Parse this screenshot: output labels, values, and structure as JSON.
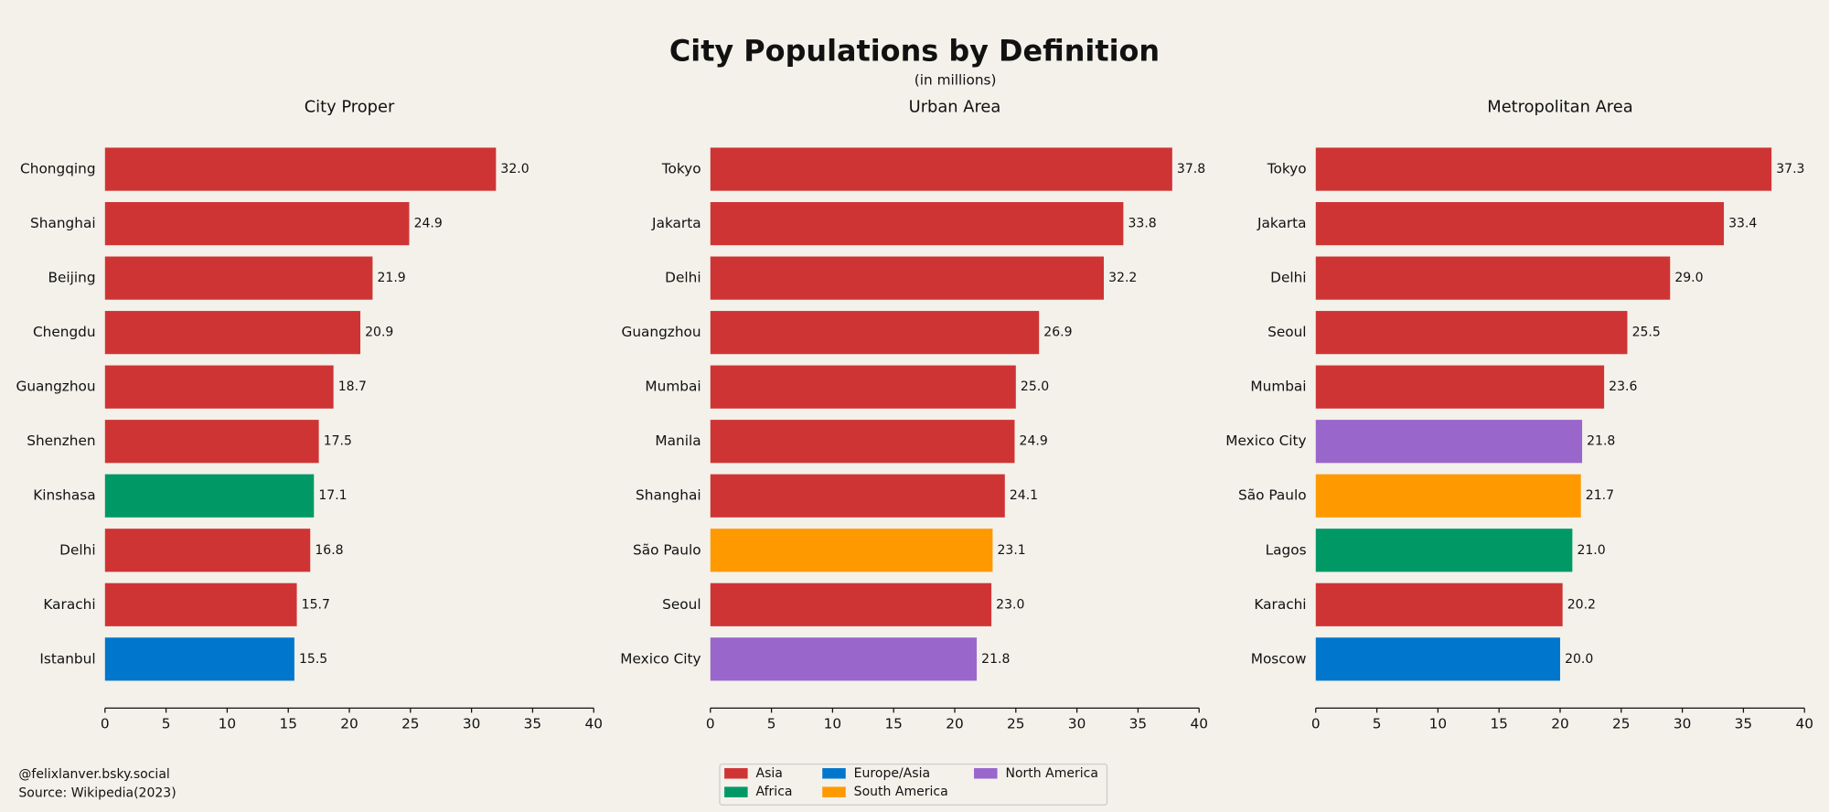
{
  "title": "City Populations by Definition",
  "subtitle": "(in millions)",
  "credits": [
    "@felixlanver.bsky.social",
    "Source: Wikipedia(2023)"
  ],
  "legend": [
    {
      "name": "Asia",
      "color": "#cf3434"
    },
    {
      "name": "Africa",
      "color": "#009966"
    },
    {
      "name": "Europe/Asia",
      "color": "#0077cc"
    },
    {
      "name": "South America",
      "color": "#ff9900"
    },
    {
      "name": "North America",
      "color": "#9966cc"
    }
  ],
  "chart_data": [
    {
      "type": "barh",
      "title": "City Proper",
      "categories": [
        "Chongqing",
        "Shanghai",
        "Beijing",
        "Chengdu",
        "Guangzhou",
        "Shenzhen",
        "Kinshasa",
        "Delhi",
        "Karachi",
        "Istanbul"
      ],
      "values": [
        32.0,
        24.9,
        21.9,
        20.9,
        18.7,
        17.5,
        17.1,
        16.8,
        15.7,
        15.5
      ],
      "value_labels": [
        "32.0",
        "24.9",
        "21.9",
        "20.9",
        "18.7",
        "17.5",
        "17.1",
        "16.8",
        "15.7",
        "15.5"
      ],
      "colors": [
        "#cf3434",
        "#cf3434",
        "#cf3434",
        "#cf3434",
        "#cf3434",
        "#cf3434",
        "#009966",
        "#cf3434",
        "#cf3434",
        "#0077cc"
      ],
      "xlim": [
        0,
        40
      ],
      "xticks": [
        0,
        5,
        10,
        15,
        20,
        25,
        30,
        35,
        40
      ]
    },
    {
      "type": "barh",
      "title": "Urban Area",
      "categories": [
        "Tokyo",
        "Jakarta",
        "Delhi",
        "Guangzhou",
        "Mumbai",
        "Manila",
        "Shanghai",
        "São Paulo",
        "Seoul",
        "Mexico City"
      ],
      "values": [
        37.8,
        33.8,
        32.2,
        26.9,
        25.0,
        24.9,
        24.1,
        23.1,
        23.0,
        21.8
      ],
      "value_labels": [
        "37.8",
        "33.8",
        "32.2",
        "26.9",
        "25.0",
        "24.9",
        "24.1",
        "23.1",
        "23.0",
        "21.8"
      ],
      "colors": [
        "#cf3434",
        "#cf3434",
        "#cf3434",
        "#cf3434",
        "#cf3434",
        "#cf3434",
        "#cf3434",
        "#ff9900",
        "#cf3434",
        "#9966cc"
      ],
      "xlim": [
        0,
        40
      ],
      "xticks": [
        0,
        5,
        10,
        15,
        20,
        25,
        30,
        35,
        40
      ]
    },
    {
      "type": "barh",
      "title": "Metropolitan Area",
      "categories": [
        "Tokyo",
        "Jakarta",
        "Delhi",
        "Seoul",
        "Mumbai",
        "Mexico City",
        "São Paulo",
        "Lagos",
        "Karachi",
        "Moscow"
      ],
      "values": [
        37.3,
        33.4,
        29.0,
        25.5,
        23.6,
        21.8,
        21.7,
        21.0,
        20.2,
        20.0
      ],
      "value_labels": [
        "37.3",
        "33.4",
        "29.0",
        "25.5",
        "23.6",
        "21.8",
        "21.7",
        "21.0",
        "20.2",
        "20.0"
      ],
      "colors": [
        "#cf3434",
        "#cf3434",
        "#cf3434",
        "#cf3434",
        "#cf3434",
        "#9966cc",
        "#ff9900",
        "#009966",
        "#cf3434",
        "#0077cc"
      ],
      "xlim": [
        0,
        40
      ],
      "xticks": [
        0,
        5,
        10,
        15,
        20,
        25,
        30,
        35,
        40
      ]
    }
  ]
}
